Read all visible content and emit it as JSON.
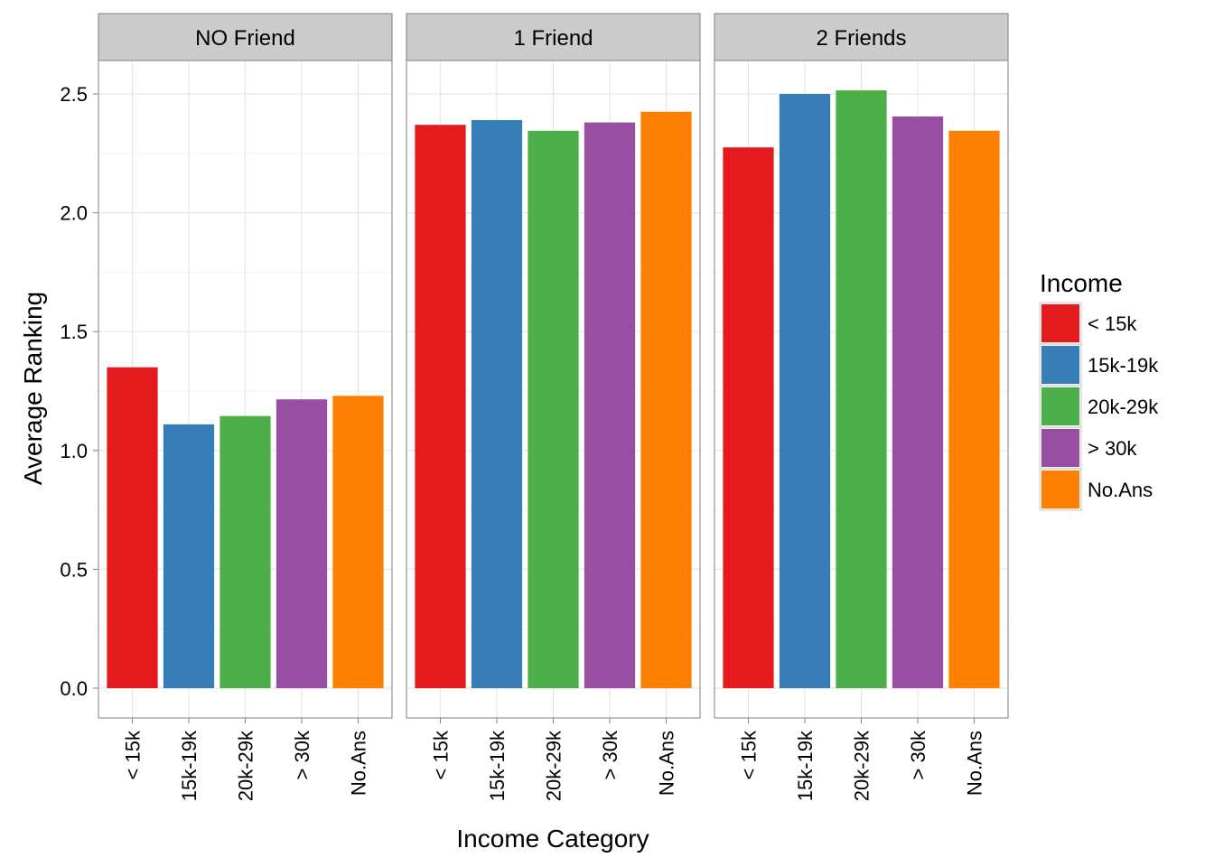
{
  "chart_data": {
    "type": "bar",
    "facet_by": "Friends",
    "facets": [
      {
        "label": "NO Friend",
        "values": [
          1.35,
          1.11,
          1.145,
          1.215,
          1.23
        ]
      },
      {
        "label": "1 Friend",
        "values": [
          2.37,
          2.39,
          2.345,
          2.38,
          2.425
        ]
      },
      {
        "label": "2 Friends",
        "values": [
          2.275,
          2.5,
          2.515,
          2.405,
          2.345
        ]
      }
    ],
    "categories": [
      "< 15k",
      "15k-19k",
      "20k-29k",
      "> 30k",
      "No.Ans"
    ],
    "colors": [
      "#E41A1C",
      "#377EB8",
      "#4DAF4A",
      "#984EA3",
      "#FF7F00"
    ],
    "xlabel": "Income Category",
    "ylabel": "Average Ranking",
    "yticks": [
      "0.0",
      "0.5",
      "1.0",
      "1.5",
      "2.0",
      "2.5"
    ],
    "ytick_values": [
      0,
      0.5,
      1.0,
      1.5,
      2.0,
      2.5
    ],
    "ylim": [
      -0.12,
      2.78
    ],
    "legend": {
      "title": "Income",
      "position": "right"
    },
    "grid": true
  }
}
